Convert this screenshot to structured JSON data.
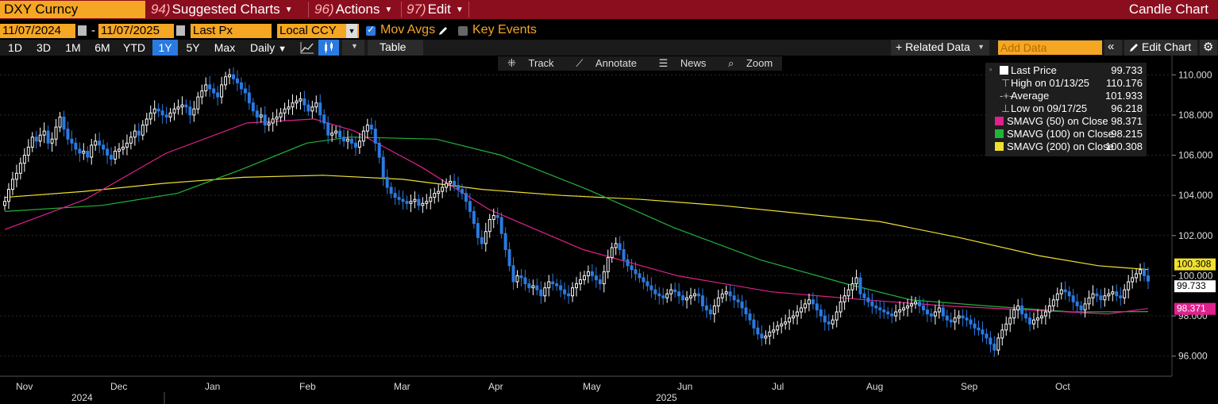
{
  "topbar": {
    "ticker": "DXY Curncy",
    "menus": [
      {
        "num": "94)",
        "label": "Suggested Charts"
      },
      {
        "num": "96)",
        "label": "Actions"
      },
      {
        "num": "97)",
        "label": "Edit"
      }
    ],
    "title": "Candle Chart"
  },
  "controls": {
    "start_date": "11/07/2024",
    "end_date": "11/07/2025",
    "separator": "-",
    "field": "Last Px",
    "currency": "Local CCY",
    "mov_avgs_label": "Mov Avgs",
    "key_events_label": "Key Events"
  },
  "toolbar": {
    "ranges": [
      "1D",
      "3D",
      "1M",
      "6M",
      "YTD",
      "1Y",
      "5Y",
      "Max"
    ],
    "active_range": "1Y",
    "frequency": "Daily",
    "table_label": "Table",
    "related_data_label": "+ Related Data",
    "add_data_placeholder": "Add Data",
    "edit_chart_label": "Edit Chart"
  },
  "chart_tools": {
    "track": "Track",
    "annotate": "Annotate",
    "news": "News",
    "zoom": "Zoom"
  },
  "legend": [
    {
      "label": "Last Price",
      "value": "99.733",
      "color": "#ffffff"
    },
    {
      "label": "High on 01/13/25",
      "value": "110.176",
      "color": ""
    },
    {
      "label": "Average",
      "value": "101.933",
      "color": ""
    },
    {
      "label": "Low on 09/17/25",
      "value": "96.218",
      "color": ""
    },
    {
      "label": "SMAVG (50)  on Close",
      "value": "98.371",
      "color": "#e0208c"
    },
    {
      "label": "SMAVG (100)  on Close",
      "value": "98.215",
      "color": "#22b33a"
    },
    {
      "label": "SMAVG (200)  on Close",
      "value": "100.308",
      "color": "#f0e030"
    }
  ],
  "colors": {
    "up": "#ffffff",
    "down": "#2a7ae2",
    "sma50": "#e0208c",
    "sma100": "#22b33a",
    "sma200": "#f0e030",
    "topbar": "#8b0e1f",
    "accent": "#f5a623"
  },
  "chart_data": {
    "type": "candlestick",
    "title": "",
    "xlabel": "",
    "ylabel": "",
    "ylim": [
      95.0,
      110.8
    ],
    "y_ticks": [
      "96.000",
      "98.000",
      "100.000",
      "102.000",
      "104.000",
      "106.000",
      "108.000",
      "110.000"
    ],
    "x_month_labels": [
      "Nov",
      "Dec",
      "Jan",
      "Feb",
      "Mar",
      "Apr",
      "May",
      "Jun",
      "Jul",
      "Aug",
      "Sep",
      "Oct"
    ],
    "x_year_labels": [
      "2024",
      "2025"
    ],
    "right_labels": [
      {
        "text": "100.308",
        "value": 100.308,
        "series": "SMAVG (200)"
      },
      {
        "text": "99.733",
        "value": 99.733,
        "series": "Last Price"
      },
      {
        "text": "98.371",
        "value": 98.371,
        "series": "SMAVG (50)"
      }
    ],
    "closes": [
      103.7,
      104.3,
      104.8,
      105.1,
      105.6,
      106.0,
      106.4,
      106.9,
      106.7,
      107.0,
      107.2,
      106.6,
      106.8,
      107.4,
      107.9,
      107.3,
      106.8,
      106.6,
      106.3,
      106.1,
      106.2,
      105.9,
      106.5,
      106.7,
      106.5,
      106.3,
      106.0,
      105.8,
      106.2,
      106.3,
      106.4,
      106.6,
      106.9,
      107.2,
      107.0,
      107.5,
      107.8,
      108.1,
      108.3,
      108.2,
      108.0,
      107.9,
      108.1,
      108.3,
      108.4,
      108.5,
      108.4,
      108.0,
      108.3,
      108.9,
      109.2,
      109.5,
      109.3,
      109.1,
      108.9,
      109.5,
      109.9,
      110.0,
      109.8,
      109.6,
      109.3,
      109.1,
      108.6,
      108.2,
      107.9,
      108.0,
      107.5,
      107.6,
      107.8,
      107.9,
      108.1,
      108.3,
      108.4,
      108.6,
      108.7,
      108.8,
      108.5,
      108.2,
      108.4,
      108.6,
      108.0,
      107.6,
      107.0,
      107.1,
      107.2,
      106.9,
      106.7,
      106.8,
      106.6,
      106.4,
      106.7,
      107.2,
      107.5,
      107.3,
      106.6,
      105.9,
      104.9,
      104.4,
      104.1,
      103.9,
      103.8,
      103.7,
      103.6,
      103.7,
      103.8,
      103.5,
      103.6,
      103.7,
      103.9,
      104.1,
      104.2,
      104.4,
      104.6,
      104.7,
      104.5,
      104.3,
      104.1,
      103.7,
      103.2,
      102.6,
      101.9,
      101.6,
      102.2,
      102.8,
      103.0,
      102.9,
      102.1,
      101.3,
      100.5,
      99.7,
      100.0,
      99.9,
      99.6,
      99.4,
      99.5,
      99.3,
      99.0,
      99.4,
      99.7,
      99.6,
      99.5,
      99.3,
      99.1,
      99.0,
      99.4,
      99.6,
      99.8,
      100.0,
      100.2,
      100.0,
      99.8,
      99.6,
      100.2,
      100.9,
      101.4,
      101.6,
      101.3,
      100.8,
      100.5,
      100.3,
      100.1,
      99.9,
      99.7,
      99.5,
      99.3,
      99.1,
      99.0,
      98.9,
      99.1,
      99.3,
      99.2,
      99.0,
      98.8,
      98.9,
      99.0,
      99.1,
      99.0,
      98.5,
      98.3,
      98.1,
      98.5,
      98.9,
      99.1,
      99.2,
      99.0,
      98.8,
      98.7,
      98.4,
      98.1,
      97.8,
      97.4,
      97.1,
      96.9,
      97.0,
      97.2,
      97.3,
      97.5,
      97.6,
      97.7,
      97.9,
      98.0,
      98.2,
      98.4,
      98.6,
      98.8,
      98.6,
      98.3,
      98.0,
      97.7,
      97.6,
      97.8,
      98.2,
      98.7,
      99.0,
      99.3,
      99.6,
      99.9,
      99.1,
      98.9,
      98.7,
      98.5,
      98.4,
      98.3,
      98.2,
      98.1,
      98.0,
      98.2,
      98.3,
      98.4,
      98.5,
      98.6,
      98.7,
      98.5,
      98.3,
      98.1,
      98.0,
      98.2,
      98.4,
      98.0,
      97.8,
      97.7,
      97.9,
      98.0,
      97.9,
      97.8,
      97.6,
      97.4,
      97.3,
      97.1,
      96.9,
      96.6,
      96.3,
      96.9,
      97.3,
      97.6,
      97.9,
      98.3,
      98.5,
      98.1,
      97.9,
      97.6,
      97.8,
      97.9,
      98.0,
      98.2,
      98.5,
      98.8,
      99.1,
      99.3,
      99.2,
      99.0,
      98.7,
      98.5,
      98.3,
      98.6,
      98.9,
      99.1,
      99.0,
      98.8,
      99.0,
      99.1,
      99.2,
      99.0,
      98.9,
      99.3,
      99.7,
      99.9,
      100.1,
      100.3,
      100.0,
      99.733
    ],
    "sma50": [
      [
        0,
        102.3
      ],
      [
        30,
        103.8
      ],
      [
        60,
        106.1
      ],
      [
        90,
        107.6
      ],
      [
        115,
        107.8
      ],
      [
        130,
        107.2
      ],
      [
        155,
        105.4
      ],
      [
        180,
        103.3
      ],
      [
        215,
        101.3
      ],
      [
        250,
        100.0
      ],
      [
        285,
        99.2
      ],
      [
        320,
        98.8
      ],
      [
        350,
        98.5
      ],
      [
        380,
        98.3
      ],
      [
        410,
        98.1
      ],
      [
        425,
        98.371
      ]
    ],
    "sma100": [
      [
        0,
        103.2
      ],
      [
        45,
        103.5
      ],
      [
        80,
        104.1
      ],
      [
        110,
        105.3
      ],
      [
        140,
        106.6
      ],
      [
        160,
        106.9
      ],
      [
        200,
        106.8
      ],
      [
        230,
        106.0
      ],
      [
        270,
        104.3
      ],
      [
        310,
        102.4
      ],
      [
        350,
        100.8
      ],
      [
        390,
        99.6
      ],
      [
        420,
        98.8
      ],
      [
        455,
        98.5
      ],
      [
        495,
        98.2
      ],
      [
        530,
        98.215
      ]
    ],
    "sma200": [
      [
        0,
        103.9
      ],
      [
        80,
        104.2
      ],
      [
        160,
        104.6
      ],
      [
        240,
        104.9
      ],
      [
        320,
        105.0
      ],
      [
        400,
        104.8
      ],
      [
        480,
        104.3
      ],
      [
        560,
        104.0
      ],
      [
        640,
        103.8
      ],
      [
        720,
        103.5
      ],
      [
        800,
        103.1
      ],
      [
        880,
        102.7
      ],
      [
        960,
        101.9
      ],
      [
        1040,
        101.0
      ],
      [
        1100,
        100.5
      ],
      [
        1150,
        100.308
      ]
    ]
  }
}
